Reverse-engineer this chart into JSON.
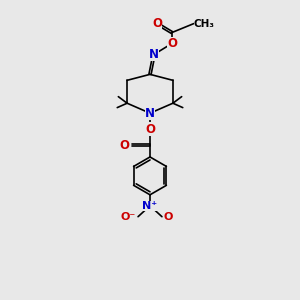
{
  "bg_color": "#e8e8e8",
  "bond_color": "#000000",
  "N_color": "#0000cc",
  "O_color": "#cc0000",
  "font_size": 7.5,
  "line_width": 1.2,
  "fig_w": 3.0,
  "fig_h": 3.0,
  "dpi": 100,
  "xlim": [
    0,
    10
  ],
  "ylim": [
    0,
    15
  ]
}
